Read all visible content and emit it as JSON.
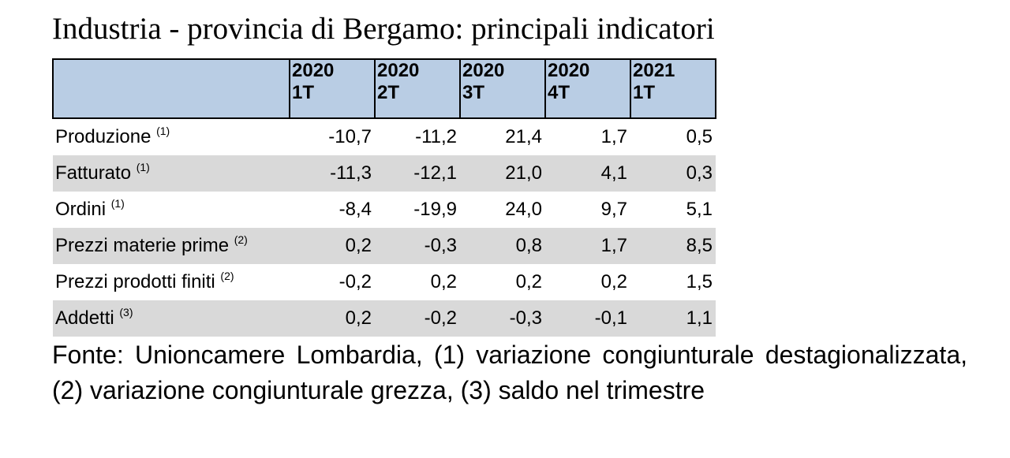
{
  "title": "Industria - provincia di Bergamo: principali indicatori",
  "columns": [
    {
      "year": "2020",
      "quarter": "1T"
    },
    {
      "year": "2020",
      "quarter": "2T"
    },
    {
      "year": "2020",
      "quarter": "3T"
    },
    {
      "year": "2020",
      "quarter": "4T"
    },
    {
      "year": "2021",
      "quarter": "1T"
    }
  ],
  "rows": [
    {
      "label": "Produzione",
      "note": "(1)",
      "values": [
        "-10,7",
        "-11,2",
        "21,4",
        "1,7",
        "0,5"
      ]
    },
    {
      "label": "Fatturato",
      "note": "(1)",
      "values": [
        "-11,3",
        "-12,1",
        "21,0",
        "4,1",
        "0,3"
      ]
    },
    {
      "label": "Ordini",
      "note": "(1)",
      "values": [
        "-8,4",
        "-19,9",
        "24,0",
        "9,7",
        "5,1"
      ]
    },
    {
      "label": "Prezzi materie prime",
      "note": "(2)",
      "values": [
        "0,2",
        "-0,3",
        "0,8",
        "1,7",
        "8,5"
      ]
    },
    {
      "label": "Prezzi prodotti finiti",
      "note": "(2)",
      "values": [
        "-0,2",
        "0,2",
        "0,2",
        "0,2",
        "1,5"
      ]
    },
    {
      "label": "Addetti",
      "note": "(3)",
      "values": [
        "0,2",
        "-0,2",
        "-0,3",
        "-0,1",
        "1,1"
      ]
    }
  ],
  "source": "Fonte: Unioncamere Lombardia, (1) variazione congiunturale destagionalizzata, (2) variazione congiunturale grezza, (3) saldo nel trimestre",
  "colors": {
    "header_bg": "#b9cde4",
    "shaded_row_bg": "#d9d9d9",
    "text": "#000000"
  }
}
